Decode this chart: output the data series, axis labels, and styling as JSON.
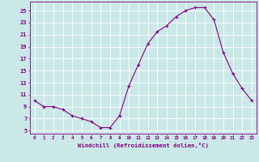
{
  "x": [
    0,
    1,
    2,
    3,
    4,
    5,
    6,
    7,
    8,
    9,
    10,
    11,
    12,
    13,
    14,
    15,
    16,
    17,
    18,
    19,
    20,
    21,
    22,
    23
  ],
  "y": [
    10.0,
    9.0,
    9.0,
    8.5,
    7.5,
    7.0,
    6.5,
    5.5,
    5.5,
    7.5,
    12.5,
    16.0,
    19.5,
    21.5,
    22.5,
    24.0,
    25.0,
    25.5,
    25.5,
    23.5,
    18.0,
    14.5,
    12.0,
    10.0
  ],
  "line_color": "#800080",
  "marker": "+",
  "marker_size": 3,
  "marker_linewidth": 0.8,
  "line_width": 0.8,
  "bg_color": "#cbe8e8",
  "grid_color": "#ffffff",
  "xlabel": "Windchill (Refroidissement éolien,°C)",
  "ylabel_ticks": [
    5,
    7,
    9,
    11,
    13,
    15,
    17,
    19,
    21,
    23,
    25
  ],
  "xtick_labels": [
    "0",
    "1",
    "2",
    "3",
    "4",
    "5",
    "6",
    "7",
    "8",
    "9",
    "10",
    "11",
    "12",
    "13",
    "14",
    "15",
    "16",
    "17",
    "18",
    "19",
    "20",
    "21",
    "22",
    "23"
  ],
  "ylim": [
    4.5,
    26.5
  ],
  "xlim": [
    -0.5,
    23.5
  ],
  "tick_color": "#800080",
  "label_color": "#800080",
  "spine_color": "#800080",
  "xlabel_fontsize": 5.2,
  "xtick_fontsize": 4.2,
  "ytick_fontsize": 5.0
}
